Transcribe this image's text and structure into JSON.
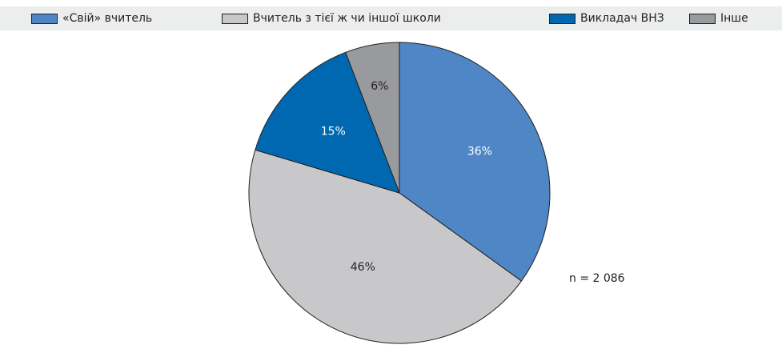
{
  "chart_data": {
    "type": "pie",
    "title": "",
    "categories": [
      "«Свій» вчитель",
      "Вчитель з тієї ж чи іншої школи",
      "Викладач ВНЗ",
      "Інше"
    ],
    "values": [
      36,
      46,
      15,
      6
    ],
    "value_labels": [
      "36%",
      "46%",
      "15%",
      "6%"
    ],
    "colors": [
      "#4f86c6",
      "#c8c8ca",
      "#0068b0",
      "#999a9e"
    ],
    "label_colors": [
      "#ffffff",
      "#231f20",
      "#ffffff",
      "#231f20"
    ],
    "start_angle_deg": 0,
    "direction": "clockwise",
    "legend_position": "top",
    "note": "n = 2 086"
  }
}
